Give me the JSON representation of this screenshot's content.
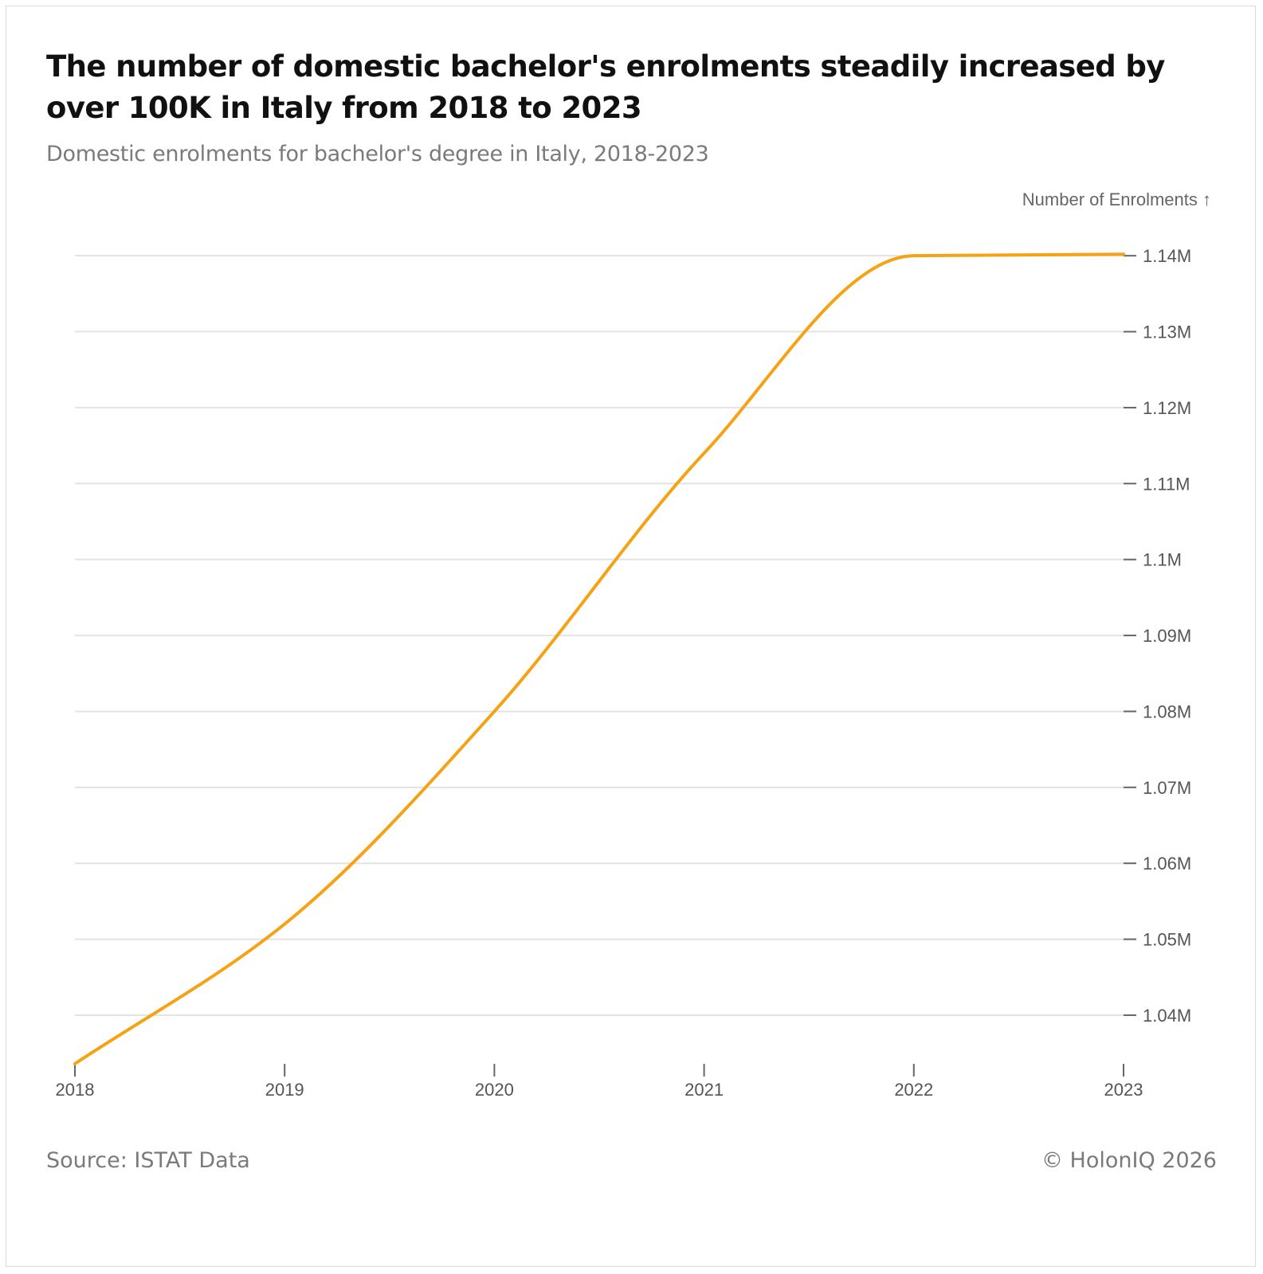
{
  "header": {
    "title": "The number of domestic bachelor's enrolments steadily increased by over 100K in Italy from 2018 to 2023",
    "subtitle": "Domestic enrolments for bachelor's degree in Italy, 2018-2023"
  },
  "footer": {
    "source": "Source: ISTAT Data",
    "copyright": "© HolonIQ 2026"
  },
  "colors": {
    "line": "#F5A214",
    "grid": "#e3e3e3",
    "axis": "#666666"
  },
  "chart_data": {
    "type": "line",
    "title": "The number of domestic bachelor's enrolments steadily increased by over 100K in Italy from 2018 to 2023",
    "subtitle": "Domestic enrolments for bachelor's degree in Italy, 2018-2023",
    "xlabel": "",
    "ylabel": "Number of Enrolments ↑",
    "x": [
      2018,
      2019,
      2020,
      2021,
      2022,
      2023
    ],
    "x_tick_labels": [
      "2018",
      "2019",
      "2020",
      "2021",
      "2022",
      "2023"
    ],
    "series": [
      {
        "name": "Domestic enrolments",
        "values": [
          1033600,
          1052000,
          1080000,
          1114000,
          1140000,
          1140200
        ]
      }
    ],
    "ylim": [
      1033600,
      1141800
    ],
    "y_ticks": [
      1040000,
      1050000,
      1060000,
      1070000,
      1080000,
      1090000,
      1100000,
      1110000,
      1120000,
      1130000,
      1140000
    ],
    "y_tick_labels": [
      "1.04M",
      "1.05M",
      "1.06M",
      "1.07M",
      "1.08M",
      "1.09M",
      "1.1M",
      "1.11M",
      "1.12M",
      "1.13M",
      "1.14M"
    ],
    "grid": true,
    "y_axis_position": "right",
    "legend": "none"
  }
}
